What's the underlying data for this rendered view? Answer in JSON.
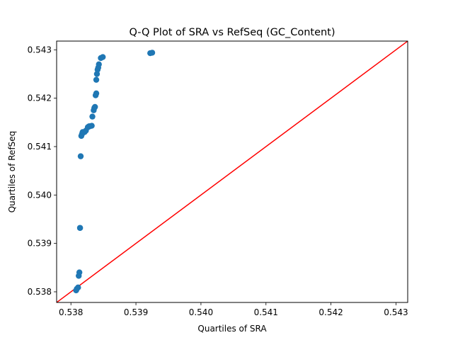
{
  "chart_data": {
    "type": "scatter",
    "title": "Q-Q Plot of SRA vs RefSeq (GC_Content)",
    "xlabel": "Quartiles of SRA",
    "ylabel": "Quartiles of RefSeq",
    "xlim": [
      0.53778,
      0.54318
    ],
    "ylim": [
      0.53778,
      0.54318
    ],
    "xticks": [
      0.538,
      0.539,
      0.54,
      0.541,
      0.542,
      0.543
    ],
    "yticks": [
      0.538,
      0.539,
      0.54,
      0.541,
      0.542,
      0.543
    ],
    "xtick_labels": [
      "0.538",
      "0.539",
      "0.540",
      "0.541",
      "0.542",
      "0.543"
    ],
    "ytick_labels": [
      "0.538",
      "0.539",
      "0.540",
      "0.541",
      "0.542",
      "0.543"
    ],
    "grid": false,
    "point_color": "#1f77b4",
    "reference_line": {
      "color": "#ff0000",
      "slope": 1,
      "intercept": 0
    },
    "series": [
      {
        "x": [
          0.53808,
          0.53809,
          0.53811,
          0.53812,
          0.53813,
          0.53814,
          0.53814,
          0.53815,
          0.53816,
          0.53817,
          0.53818,
          0.53821,
          0.53823,
          0.53826,
          0.53828,
          0.53829,
          0.53832,
          0.53833,
          0.53835,
          0.53836,
          0.53837,
          0.53838,
          0.53839,
          0.53839,
          0.5384,
          0.53841,
          0.53842,
          0.53843,
          0.53846,
          0.53849,
          0.53922,
          0.53925
        ],
        "y": [
          0.53803,
          0.53806,
          0.53809,
          0.53833,
          0.5384,
          0.53932,
          0.53932,
          0.5408,
          0.54122,
          0.54126,
          0.5413,
          0.5413,
          0.54133,
          0.5414,
          0.54142,
          0.54142,
          0.54143,
          0.54162,
          0.54175,
          0.5418,
          0.54182,
          0.54206,
          0.5421,
          0.54238,
          0.5425,
          0.54259,
          0.54263,
          0.5427,
          0.54283,
          0.54285,
          0.54293,
          0.54294
        ]
      }
    ]
  }
}
